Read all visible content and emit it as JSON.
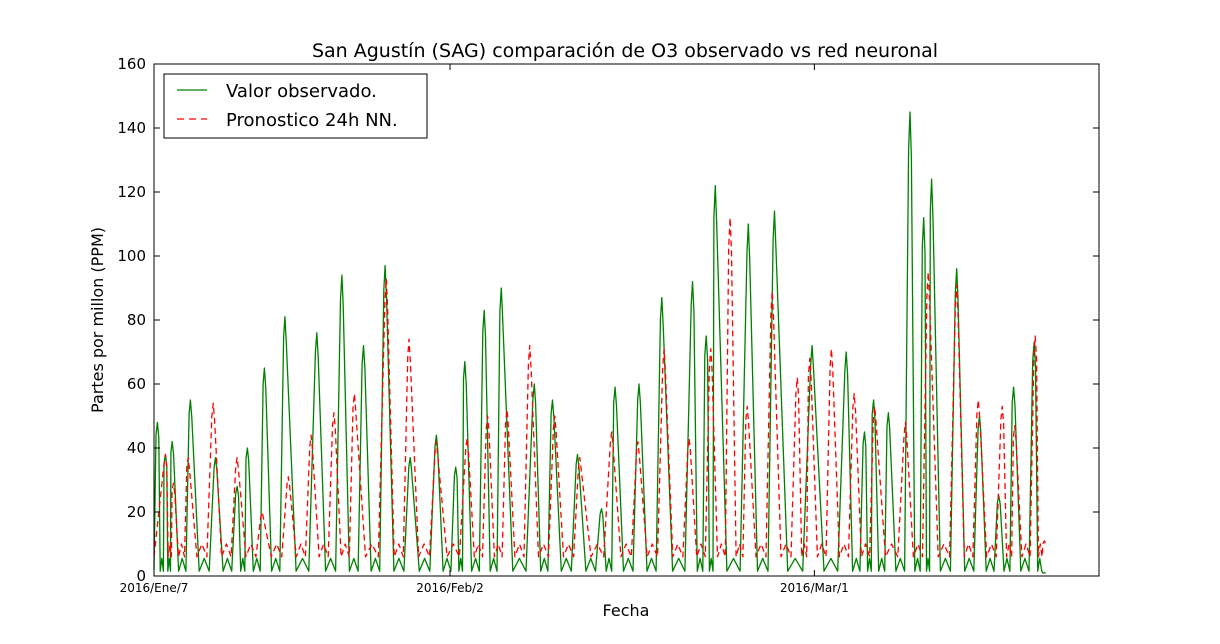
{
  "chart_data": {
    "type": "line",
    "title": "San Agustín (SAG) comparación de O3 observado vs red neuronal",
    "xlabel": "Fecha",
    "ylabel": "Partes por millon (PPM)",
    "ylim": [
      0,
      160
    ],
    "y_ticks": [
      "0",
      "20",
      "40",
      "60",
      "80",
      "100",
      "120",
      "140",
      "160"
    ],
    "x_ticks": [
      {
        "label": "2016/Ene/7",
        "x": 0
      },
      {
        "label": "2016/Feb/2",
        "x": 26
      },
      {
        "label": "2016/Mar/1",
        "x": 58
      }
    ],
    "xlim": [
      0,
      83
    ],
    "legend_position": "top-left",
    "grid": false,
    "x_unit": "days since 2016/Ene/7 (daily peaks)",
    "series": [
      {
        "name": "Valor observado.",
        "color": "#008000",
        "style": "solid",
        "peaks": [
          [
            0.3,
            48
          ],
          [
            1.0,
            38
          ],
          [
            1.6,
            42
          ],
          [
            3.2,
            55
          ],
          [
            5.4,
            37
          ],
          [
            7.3,
            28
          ],
          [
            8.2,
            40
          ],
          [
            9.7,
            65
          ],
          [
            11.5,
            81
          ],
          [
            14.3,
            76
          ],
          [
            16.5,
            94
          ],
          [
            18.4,
            72
          ],
          [
            20.3,
            97
          ],
          [
            22.5,
            37
          ],
          [
            24.8,
            44
          ],
          [
            26.5,
            34
          ],
          [
            27.3,
            67
          ],
          [
            29.0,
            83
          ],
          [
            30.5,
            90
          ],
          [
            33.4,
            60
          ],
          [
            35.0,
            55
          ],
          [
            37.2,
            38
          ],
          [
            39.3,
            21
          ],
          [
            40.5,
            59
          ],
          [
            42.6,
            60
          ],
          [
            44.6,
            87
          ],
          [
            47.3,
            92
          ],
          [
            48.5,
            75
          ],
          [
            49.3,
            122
          ],
          [
            52.2,
            110
          ],
          [
            54.5,
            114
          ],
          [
            57.8,
            72
          ],
          [
            60.8,
            70
          ],
          [
            62.4,
            45
          ],
          [
            63.2,
            55
          ],
          [
            64.5,
            51
          ],
          [
            66.4,
            145
          ],
          [
            67.6,
            112
          ],
          [
            68.3,
            124
          ],
          [
            70.5,
            96
          ],
          [
            72.5,
            50
          ],
          [
            74.2,
            25
          ],
          [
            75.5,
            59
          ],
          [
            77.3,
            73
          ],
          [
            78.2,
            1
          ]
        ]
      },
      {
        "name": "Pronostico 24h NN.",
        "color": "#ff0000",
        "style": "dashed",
        "peaks": [
          [
            1.0,
            38
          ],
          [
            1.7,
            29
          ],
          [
            3.0,
            37
          ],
          [
            5.2,
            54
          ],
          [
            7.3,
            37
          ],
          [
            9.5,
            20
          ],
          [
            11.8,
            31
          ],
          [
            13.8,
            44
          ],
          [
            15.8,
            51
          ],
          [
            17.6,
            57
          ],
          [
            20.4,
            93
          ],
          [
            22.4,
            74
          ],
          [
            24.8,
            42
          ],
          [
            27.5,
            43
          ],
          [
            29.3,
            50
          ],
          [
            31.0,
            52
          ],
          [
            33.0,
            72
          ],
          [
            35.2,
            50
          ],
          [
            37.4,
            37
          ],
          [
            40.2,
            45
          ],
          [
            42.5,
            42
          ],
          [
            44.8,
            71
          ],
          [
            47.0,
            43
          ],
          [
            48.9,
            71
          ],
          [
            50.6,
            112
          ],
          [
            52.1,
            53
          ],
          [
            54.3,
            89
          ],
          [
            56.5,
            62
          ],
          [
            57.6,
            68
          ],
          [
            59.5,
            71
          ],
          [
            61.5,
            57
          ],
          [
            63.3,
            53
          ],
          [
            66.0,
            48
          ],
          [
            68.0,
            95
          ],
          [
            70.5,
            91
          ],
          [
            72.4,
            55
          ],
          [
            74.5,
            53
          ],
          [
            75.6,
            47
          ],
          [
            77.4,
            75
          ],
          [
            78.2,
            11
          ]
        ]
      }
    ]
  }
}
